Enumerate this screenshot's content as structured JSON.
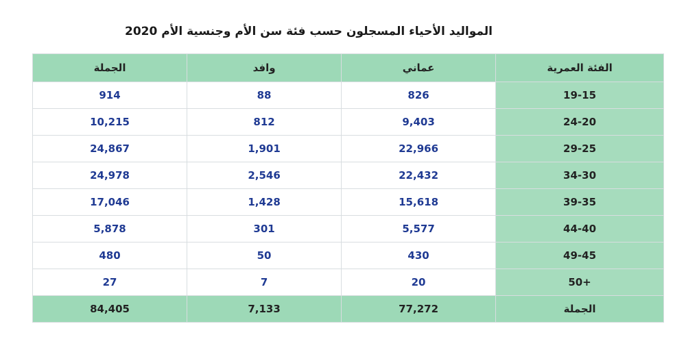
{
  "title": "المواليد الأحياء المسجلون حسب فئة سن الأم وجنسية الأم 2020",
  "table": {
    "header": [
      "الفئة العمرية",
      "عماني",
      "وافد",
      "الجملة"
    ],
    "rows": [
      [
        "19-15",
        "826",
        "88",
        "914"
      ],
      [
        "24-20",
        "9,403",
        "812",
        "10,215"
      ],
      [
        "29-25",
        "22,966",
        "1,901",
        "24,867"
      ],
      [
        "34-30",
        "22,432",
        "2,546",
        "24,978"
      ],
      [
        "39-35",
        "15,618",
        "1,428",
        "17,046"
      ],
      [
        "44-40",
        "5,577",
        "301",
        "5,878"
      ],
      [
        "49-45",
        "430",
        "50",
        "480"
      ],
      [
        "50+",
        "20",
        "7",
        "27"
      ]
    ],
    "total": [
      "الجملة",
      "77,272",
      "7,133",
      "84,405"
    ]
  }
}
